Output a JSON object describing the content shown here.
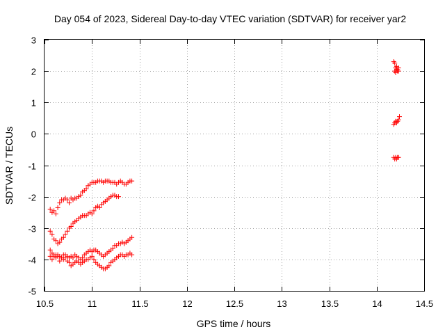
{
  "chart_data": {
    "type": "scatter",
    "title": "Day 054 of 2023, Sidereal Day-to-day VTEC variation (SDTVAR) for receiver yar2",
    "xlabel": "GPS time / hours",
    "ylabel": "SDTVAR / TECUs",
    "xlim": [
      10.5,
      14.5
    ],
    "ylim": [
      -5,
      3
    ],
    "xticks": [
      "10.5",
      "11",
      "11.5",
      "12",
      "12.5",
      "13",
      "13.5",
      "14",
      "14.5"
    ],
    "yticks": [
      "3",
      "2",
      "1",
      "0",
      "-1",
      "-2",
      "-3",
      "-4",
      "-5"
    ],
    "grid": true,
    "marker": "+",
    "color": "#ff0000",
    "series": [
      {
        "x": [
          10.56,
          10.58,
          10.6,
          10.62,
          10.64,
          10.66,
          10.68,
          10.7,
          10.72,
          10.74,
          10.76,
          10.78,
          10.8,
          10.82,
          10.84,
          10.86,
          10.88,
          10.9,
          10.92,
          10.94,
          10.96,
          10.98,
          11.0,
          11.02,
          11.04,
          11.06,
          11.08,
          11.1,
          11.12,
          11.14,
          11.16,
          11.18,
          11.2,
          11.22,
          11.24,
          11.26,
          11.28,
          11.3,
          11.32,
          11.34,
          11.36,
          11.38,
          11.4,
          11.42
        ],
        "y": [
          -2.4,
          -2.5,
          -2.45,
          -2.55,
          -2.35,
          -2.2,
          -2.1,
          -2.1,
          -2.05,
          -2.1,
          -2.2,
          -2.05,
          -2.1,
          -2.05,
          -2.05,
          -2.0,
          -1.95,
          -1.85,
          -1.8,
          -1.75,
          -1.65,
          -1.6,
          -1.55,
          -1.55,
          -1.55,
          -1.5,
          -1.5,
          -1.5,
          -1.55,
          -1.5,
          -1.5,
          -1.5,
          -1.55,
          -1.55,
          -1.55,
          -1.6,
          -1.55,
          -1.5,
          -1.55,
          -1.6,
          -1.6,
          -1.55,
          -1.5,
          -1.5
        ]
      },
      {
        "x": [
          10.56,
          10.58,
          10.6,
          10.62,
          10.64,
          10.66,
          10.68,
          10.7,
          10.72,
          10.74,
          10.76,
          10.78,
          10.8,
          10.82,
          10.84,
          10.86,
          10.88,
          10.9,
          10.92,
          10.94,
          10.96,
          10.98,
          11.0,
          11.02,
          11.04,
          11.06,
          11.08,
          11.1,
          11.12,
          11.14,
          11.16,
          11.18,
          11.2,
          11.22,
          11.24,
          11.26,
          11.28
        ],
        "y": [
          -3.1,
          -3.2,
          -3.35,
          -3.4,
          -3.5,
          -3.45,
          -3.35,
          -3.3,
          -3.2,
          -3.1,
          -3.0,
          -2.95,
          -2.85,
          -2.8,
          -2.75,
          -2.7,
          -2.65,
          -2.6,
          -2.6,
          -2.6,
          -2.55,
          -2.5,
          -2.55,
          -2.45,
          -2.35,
          -2.3,
          -2.35,
          -2.25,
          -2.2,
          -2.15,
          -2.1,
          -2.05,
          -2.0,
          -1.95,
          -1.95,
          -2.0,
          -2.0
        ]
      },
      {
        "x": [
          10.56,
          10.58,
          10.6,
          10.62,
          10.64,
          10.66,
          10.68,
          10.7,
          10.72,
          10.74,
          10.76,
          10.78,
          10.8,
          10.82,
          10.84,
          10.86,
          10.88,
          10.9,
          10.92,
          10.94,
          10.96,
          10.98,
          11.0,
          11.02,
          11.04,
          11.06,
          11.08,
          11.1,
          11.12,
          11.14,
          11.16,
          11.18,
          11.2,
          11.22,
          11.24,
          11.26,
          11.28,
          11.3,
          11.32,
          11.34,
          11.36,
          11.38,
          11.4,
          11.42
        ],
        "y": [
          -3.9,
          -4.0,
          -3.85,
          -3.95,
          -3.85,
          -3.9,
          -3.95,
          -3.85,
          -3.85,
          -3.9,
          -3.95,
          -3.9,
          -3.95,
          -3.85,
          -3.9,
          -3.95,
          -4.0,
          -3.95,
          -3.85,
          -3.8,
          -3.75,
          -3.7,
          -3.75,
          -3.7,
          -3.7,
          -3.75,
          -3.8,
          -3.85,
          -3.9,
          -3.85,
          -3.8,
          -3.75,
          -3.7,
          -3.65,
          -3.55,
          -3.55,
          -3.5,
          -3.5,
          -3.45,
          -3.5,
          -3.45,
          -3.4,
          -3.35,
          -3.3
        ]
      },
      {
        "x": [
          10.56,
          10.58,
          10.6,
          10.62,
          10.64,
          10.66,
          10.68,
          10.7,
          10.72,
          10.74,
          10.76,
          10.78,
          10.8,
          10.82,
          10.84,
          10.86,
          10.88,
          10.9,
          10.92,
          10.94,
          10.96,
          10.98,
          11.0,
          11.02,
          11.04,
          11.06,
          11.08,
          11.1,
          11.12,
          11.14,
          11.16,
          11.18,
          11.2,
          11.22,
          11.24,
          11.26,
          11.28,
          11.3,
          11.32,
          11.34,
          11.36,
          11.38,
          11.4,
          11.42
        ],
        "y": [
          -3.7,
          -3.8,
          -3.9,
          -3.85,
          -3.9,
          -4.05,
          -3.95,
          -4.0,
          -3.95,
          -4.05,
          -4.1,
          -4.2,
          -4.15,
          -4.1,
          -4.05,
          -4.1,
          -4.15,
          -4.1,
          -4.05,
          -4.0,
          -4.0,
          -3.95,
          -3.9,
          -4.0,
          -4.1,
          -4.15,
          -4.2,
          -4.25,
          -4.3,
          -4.3,
          -4.25,
          -4.2,
          -4.1,
          -4.05,
          -4.0,
          -3.95,
          -3.9,
          -3.85,
          -3.85,
          -3.9,
          -3.85,
          -3.85,
          -3.8,
          -3.85
        ]
      },
      {
        "x": [
          14.18,
          14.19,
          14.2,
          14.21,
          14.22,
          14.23,
          14.2,
          14.19,
          14.21,
          14.22,
          14.23
        ],
        "y": [
          2.3,
          2.25,
          2.1,
          2.05,
          2.0,
          2.1,
          1.95,
          2.0,
          2.15,
          2.05,
          2.0
        ]
      },
      {
        "x": [
          14.18,
          14.19,
          14.2,
          14.21,
          14.22,
          14.23,
          14.24
        ],
        "y": [
          0.3,
          0.35,
          0.4,
          0.35,
          0.4,
          0.45,
          0.55
        ]
      },
      {
        "x": [
          14.18,
          14.19,
          14.2,
          14.21,
          14.22,
          14.23
        ],
        "y": [
          -0.75,
          -0.8,
          -0.75,
          -0.8,
          -0.75,
          -0.75
        ]
      }
    ]
  }
}
